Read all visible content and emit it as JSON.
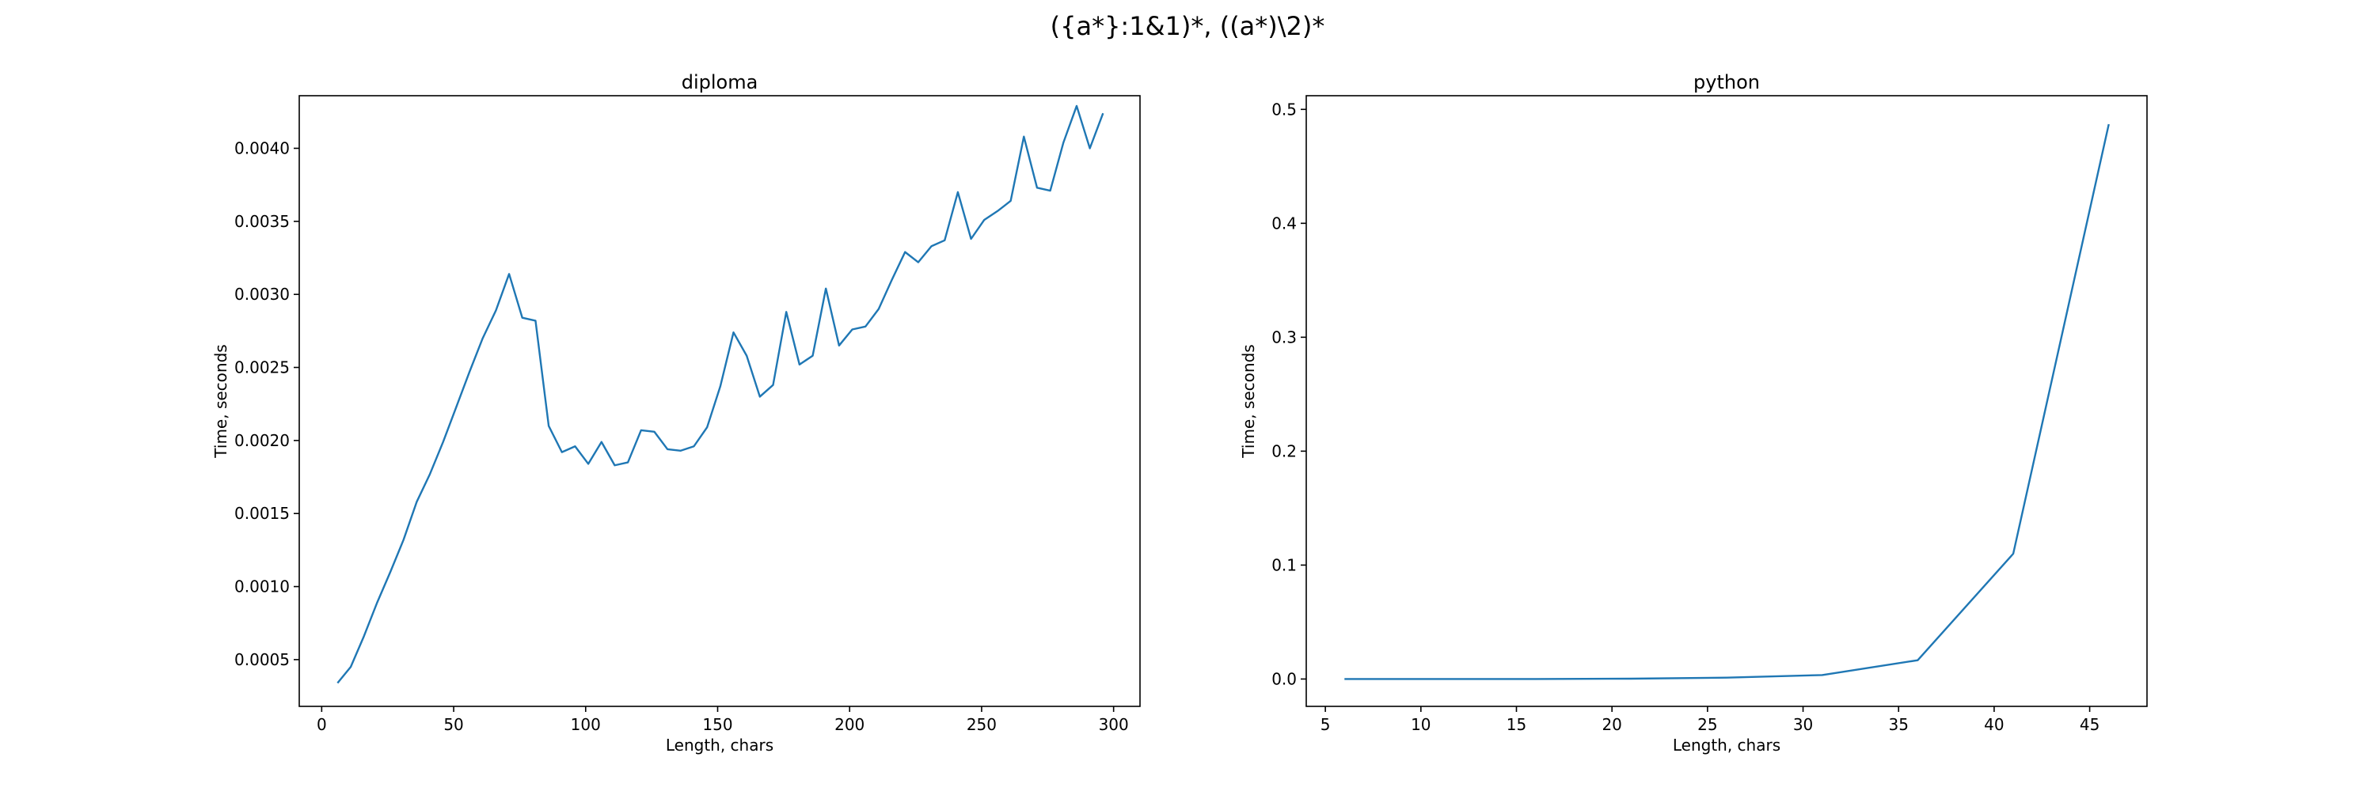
{
  "figure": {
    "suptitle": "({a*}:1&1)*, ((a*)\\2)*"
  },
  "chart_data": [
    {
      "type": "line",
      "title": "diploma",
      "xlabel": "Length, chars",
      "ylabel": "Time, seconds",
      "xlim": [
        -8.5,
        310
      ],
      "ylim": [
        0.00018,
        0.00436
      ],
      "xticks": [
        0,
        50,
        100,
        150,
        200,
        250,
        300
      ],
      "yticks": [
        0.0005,
        0.001,
        0.0015,
        0.002,
        0.0025,
        0.003,
        0.0035,
        0.004
      ],
      "xtick_labels": [
        "0",
        "50",
        "100",
        "150",
        "200",
        "250",
        "300"
      ],
      "ytick_labels": [
        "0.0005",
        "0.0010",
        "0.0015",
        "0.0020",
        "0.0025",
        "0.0030",
        "0.0035",
        "0.0040"
      ],
      "grid": false,
      "series": [
        {
          "color": "#1f77b4",
          "x": [
            6,
            11,
            16,
            21,
            26,
            31,
            36,
            41,
            46,
            51,
            56,
            61,
            66,
            71,
            76,
            81,
            86,
            91,
            96,
            101,
            106,
            111,
            116,
            121,
            126,
            131,
            136,
            141,
            146,
            151,
            156,
            161,
            166,
            171,
            176,
            181,
            186,
            191,
            196,
            201,
            206,
            211,
            216,
            221,
            226,
            231,
            236,
            241,
            246,
            251,
            256,
            261,
            266,
            271,
            276,
            281,
            286,
            291,
            296
          ],
          "y": [
            0.00034,
            0.00045,
            0.00066,
            0.00089,
            0.0011,
            0.00132,
            0.00158,
            0.00177,
            0.00199,
            0.00223,
            0.00247,
            0.0027,
            0.00289,
            0.00314,
            0.00284,
            0.00282,
            0.0021,
            0.00192,
            0.00196,
            0.00184,
            0.00199,
            0.00183,
            0.00185,
            0.00207,
            0.00206,
            0.00194,
            0.00193,
            0.00196,
            0.00209,
            0.00237,
            0.00274,
            0.00258,
            0.0023,
            0.00238,
            0.00288,
            0.00252,
            0.00258,
            0.00304,
            0.00265,
            0.00276,
            0.00278,
            0.0029,
            0.0031,
            0.00329,
            0.00322,
            0.00333,
            0.00337,
            0.0037,
            0.00338,
            0.00351,
            0.00357,
            0.00364,
            0.00408,
            0.00373,
            0.00371,
            0.00404,
            0.00429,
            0.004,
            0.00424
          ]
        }
      ]
    },
    {
      "type": "line",
      "title": "python",
      "xlabel": "Length, chars",
      "ylabel": "Time, seconds",
      "xlim": [
        4.0,
        48.0
      ],
      "ylim": [
        -0.024,
        0.512
      ],
      "xticks": [
        5,
        10,
        15,
        20,
        25,
        30,
        35,
        40,
        45
      ],
      "yticks": [
        0.0,
        0.1,
        0.2,
        0.3,
        0.4,
        0.5
      ],
      "xtick_labels": [
        "5",
        "10",
        "15",
        "20",
        "25",
        "30",
        "35",
        "40",
        "45"
      ],
      "ytick_labels": [
        "0.0",
        "0.1",
        "0.2",
        "0.3",
        "0.4",
        "0.5"
      ],
      "grid": false,
      "series": [
        {
          "color": "#1f77b4",
          "x": [
            6,
            11,
            16,
            21,
            26,
            31,
            36,
            41,
            46
          ],
          "y": [
            0.0,
            0.0,
            0.0,
            0.0003,
            0.0012,
            0.0035,
            0.0165,
            0.11,
            0.487
          ]
        }
      ]
    }
  ]
}
